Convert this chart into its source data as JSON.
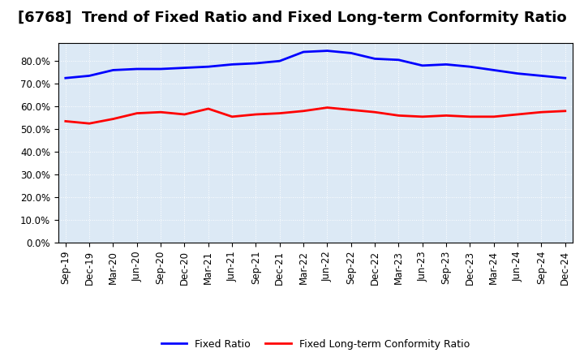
{
  "title": "[6768]  Trend of Fixed Ratio and Fixed Long-term Conformity Ratio",
  "x_labels": [
    "Sep-19",
    "Dec-19",
    "Mar-20",
    "Jun-20",
    "Sep-20",
    "Dec-20",
    "Mar-21",
    "Jun-21",
    "Sep-21",
    "Dec-21",
    "Mar-22",
    "Jun-22",
    "Sep-22",
    "Dec-22",
    "Mar-23",
    "Jun-23",
    "Sep-23",
    "Dec-23",
    "Mar-24",
    "Jun-24",
    "Sep-24",
    "Dec-24"
  ],
  "fixed_ratio": [
    72.5,
    73.5,
    76.0,
    76.5,
    76.5,
    77.0,
    77.5,
    78.5,
    79.0,
    80.0,
    84.0,
    84.5,
    83.5,
    81.0,
    80.5,
    78.0,
    78.5,
    77.5,
    76.0,
    74.5,
    73.5,
    72.5
  ],
  "fixed_lt_ratio": [
    53.5,
    52.5,
    54.5,
    57.0,
    57.5,
    56.5,
    59.0,
    55.5,
    56.5,
    57.0,
    58.0,
    59.5,
    58.5,
    57.5,
    56.0,
    55.5,
    56.0,
    55.5,
    55.5,
    56.5,
    57.5,
    58.0
  ],
  "fixed_ratio_color": "#0000ff",
  "fixed_lt_ratio_color": "#ff0000",
  "ylim": [
    0,
    88
  ],
  "yticks": [
    0,
    10,
    20,
    30,
    40,
    50,
    60,
    70,
    80
  ],
  "axes_bg_color": "#dce9f5",
  "figure_bg_color": "#ffffff",
  "grid_color": "#ffffff",
  "grid_linestyle": ":",
  "legend_fixed_ratio": "Fixed Ratio",
  "legend_fixed_lt_ratio": "Fixed Long-term Conformity Ratio",
  "title_fontsize": 13,
  "tick_fontsize": 8.5,
  "line_width": 2.0
}
